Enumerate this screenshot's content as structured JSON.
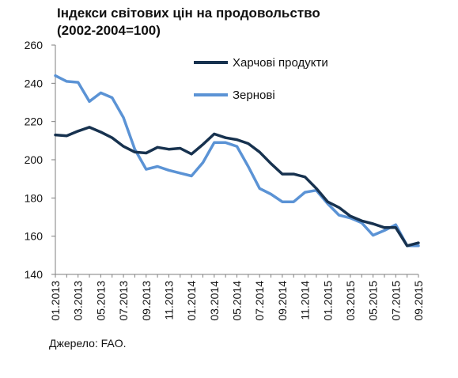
{
  "chart_data": {
    "type": "line",
    "title_lines": [
      "Індекси світових цін на продовольство",
      "(2002-2004=100)"
    ],
    "ylim": [
      140,
      260
    ],
    "yticks": [
      140,
      160,
      180,
      200,
      220,
      240,
      260
    ],
    "grid": false,
    "legend_position": "top-right",
    "x": [
      "01.2013",
      "02.2013",
      "03.2013",
      "04.2013",
      "05.2013",
      "06.2013",
      "07.2013",
      "08.2013",
      "09.2013",
      "10.2013",
      "11.2013",
      "12.2013",
      "01.2014",
      "02.2014",
      "03.2014",
      "04.2014",
      "05.2014",
      "06.2014",
      "07.2014",
      "08.2014",
      "09.2014",
      "10.2014",
      "11.2014",
      "12.2014",
      "01.2015",
      "02.2015",
      "03.2015",
      "04.2015",
      "05.2015",
      "06.2015",
      "07.2015",
      "08.2015",
      "09.2015"
    ],
    "xtick_labels": [
      "01.2013",
      "03.2013",
      "05.2013",
      "07.2013",
      "09.2013",
      "11.2013",
      "01.2014",
      "03.2014",
      "05.2014",
      "07.2014",
      "09.2014",
      "11.2014",
      "01.2015",
      "03.2015",
      "05.2015",
      "07.2015",
      "09.2015"
    ],
    "series": [
      {
        "name": "Харчові продукти",
        "color": "#17324f",
        "values": [
          213,
          212.5,
          215,
          217,
          214.5,
          211.5,
          207,
          204,
          203.5,
          206.5,
          205.5,
          206,
          203,
          208,
          213.5,
          211.5,
          210.5,
          208.5,
          204,
          198,
          192.5,
          192.5,
          191,
          185,
          178,
          175,
          170.5,
          168,
          166.5,
          164.5,
          164.5,
          155,
          156.5
        ]
      },
      {
        "name": "Зернові",
        "color": "#5b93d5",
        "values": [
          244,
          241,
          240.5,
          230.5,
          235,
          232.5,
          222,
          205.5,
          195,
          196.5,
          194.5,
          193,
          191.5,
          198.5,
          209,
          209,
          207,
          196.5,
          185,
          182,
          178,
          178,
          183,
          184,
          177,
          171,
          169.5,
          167,
          160.5,
          163,
          166,
          155,
          155
        ]
      }
    ]
  },
  "source": "Джерело: FAO."
}
